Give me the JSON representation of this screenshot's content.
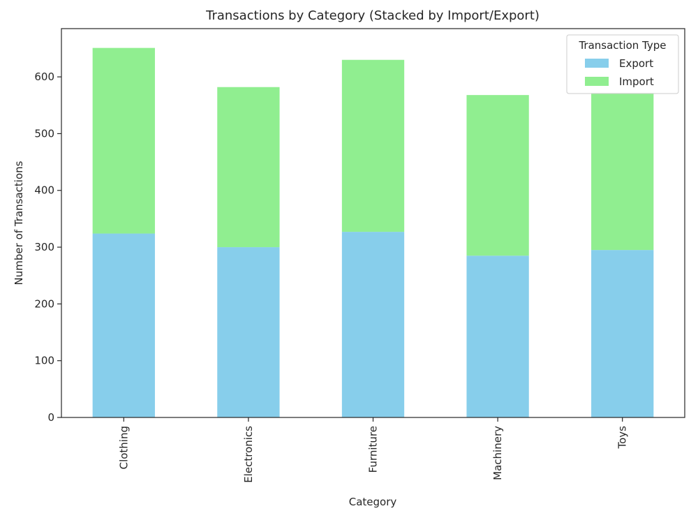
{
  "chart_data": {
    "type": "bar",
    "stacked": true,
    "title": "Transactions by Category (Stacked by Import/Export)",
    "xlabel": "Category",
    "ylabel": "Number of Transactions",
    "categories": [
      "Clothing",
      "Electronics",
      "Furniture",
      "Machinery",
      "Toys"
    ],
    "series": [
      {
        "name": "Export",
        "values": [
          324,
          300,
          327,
          285,
          295
        ],
        "color": "#87ceeb"
      },
      {
        "name": "Import",
        "values": [
          327,
          282,
          303,
          283,
          277
        ],
        "color": "#90ee90"
      }
    ],
    "ylim": [
      0,
      685
    ],
    "yticks": [
      0,
      100,
      200,
      300,
      400,
      500,
      600
    ],
    "grid": false,
    "legend": {
      "title": "Transaction Type",
      "placement": "top-right"
    }
  }
}
